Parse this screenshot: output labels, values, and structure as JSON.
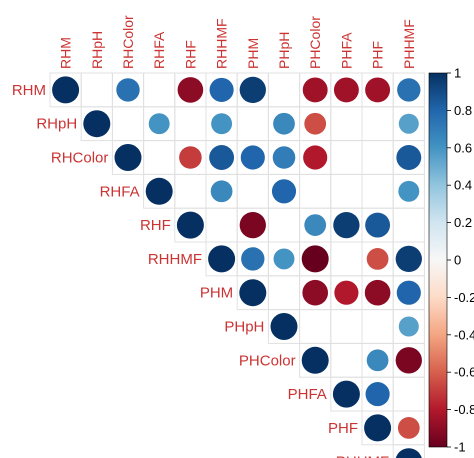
{
  "chart_data": {
    "type": "heatmap",
    "subtype": "correlation-circle-matrix",
    "shape": "upper-triangle",
    "variables": [
      "RHM",
      "RHpH",
      "RHColor",
      "RHFA",
      "RHF",
      "RHHMF",
      "PHM",
      "PHpH",
      "PHColor",
      "PHFA",
      "PHF",
      "PHHMF"
    ],
    "correlations": [
      [
        1,
        null,
        0.75,
        null,
        -0.9,
        0.8,
        0.95,
        null,
        -0.85,
        -0.85,
        -0.85,
        0.75
      ],
      [
        null,
        1,
        null,
        0.6,
        null,
        0.6,
        null,
        0.65,
        -0.65,
        null,
        null,
        0.55
      ],
      [
        null,
        null,
        1,
        null,
        -0.7,
        0.85,
        0.8,
        0.7,
        -0.8,
        null,
        null,
        0.85
      ],
      [
        null,
        null,
        null,
        1,
        null,
        0.65,
        null,
        0.8,
        null,
        null,
        null,
        0.6
      ],
      [
        null,
        null,
        null,
        null,
        1,
        null,
        -0.95,
        null,
        0.65,
        0.95,
        0.85,
        null
      ],
      [
        null,
        null,
        null,
        null,
        null,
        1,
        0.75,
        0.6,
        -1.0,
        null,
        -0.65,
        0.95
      ],
      [
        null,
        null,
        null,
        null,
        null,
        null,
        1,
        null,
        -0.9,
        -0.8,
        -0.9,
        0.8
      ],
      [
        null,
        null,
        null,
        null,
        null,
        null,
        null,
        1,
        null,
        null,
        null,
        0.55
      ],
      [
        null,
        null,
        null,
        null,
        null,
        null,
        null,
        null,
        1,
        null,
        0.65,
        -0.95
      ],
      [
        null,
        null,
        null,
        null,
        null,
        null,
        null,
        null,
        null,
        1,
        0.8,
        null
      ],
      [
        null,
        null,
        null,
        null,
        null,
        null,
        null,
        null,
        null,
        null,
        1,
        -0.65
      ],
      [
        null,
        null,
        null,
        null,
        null,
        null,
        null,
        null,
        null,
        null,
        null,
        1
      ]
    ],
    "colorbar": {
      "ticks": [
        "1",
        "0.8",
        "0.6",
        "0.4",
        "0.2",
        "0",
        "-0.2",
        "-0.4",
        "-0.6",
        "-0.8",
        "-1"
      ],
      "range": [
        -1,
        1
      ],
      "high_color": "#053061",
      "mid_color": "#f7f7f7",
      "low_color": "#67001f"
    },
    "grid": true,
    "legend": "right"
  }
}
